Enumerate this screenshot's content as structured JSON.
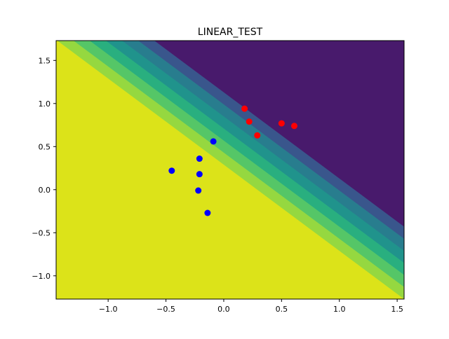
{
  "chart_data": {
    "type": "scatter",
    "title": "LINEAR_TEST",
    "xlabel": "",
    "ylabel": "",
    "xlim": [
      -1.45,
      1.56
    ],
    "ylim": [
      -1.27,
      1.73
    ],
    "xticks": [
      -1.0,
      -0.5,
      0.0,
      0.5,
      1.0,
      1.5
    ],
    "xtick_labels": [
      "−1.0",
      "−0.5",
      "0.0",
      "0.5",
      "1.0",
      "1.5"
    ],
    "yticks": [
      -1.0,
      -0.5,
      0.0,
      0.5,
      1.0,
      1.5
    ],
    "ytick_labels": [
      "−1.0",
      "−0.5",
      "0.0",
      "0.5",
      "1.0",
      "1.5"
    ],
    "grid": false,
    "legend": "none",
    "decision_surface": {
      "type": "filled_contour",
      "direction": "increasing toward upper-right along x + y",
      "band_boundaries_x_plus_y": [
        0.29,
        0.43,
        0.57,
        0.71,
        0.85,
        0.99,
        1.13
      ],
      "colors": [
        "#dce319",
        "#95d840",
        "#55c667",
        "#29af7f",
        "#20938c",
        "#287d8e",
        "#39568c",
        "#481a6c"
      ]
    },
    "series": [
      {
        "color": "#0000ff",
        "points": [
          {
            "x": -0.09,
            "y": 0.56
          },
          {
            "x": -0.21,
            "y": 0.36
          },
          {
            "x": -0.45,
            "y": 0.22
          },
          {
            "x": -0.21,
            "y": 0.18
          },
          {
            "x": -0.22,
            "y": -0.01
          },
          {
            "x": -0.14,
            "y": -0.27
          }
        ]
      },
      {
        "color": "#ff0000",
        "points": [
          {
            "x": 0.18,
            "y": 0.94
          },
          {
            "x": 0.22,
            "y": 0.79
          },
          {
            "x": 0.29,
            "y": 0.63
          },
          {
            "x": 0.5,
            "y": 0.77
          },
          {
            "x": 0.61,
            "y": 0.74
          }
        ]
      }
    ]
  }
}
